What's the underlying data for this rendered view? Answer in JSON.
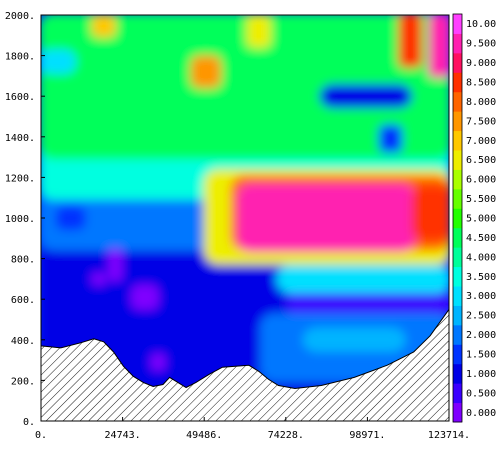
{
  "chart_data": {
    "type": "heatmap",
    "x_ticks": [
      "0.",
      "24743.",
      "49486.",
      "74228.",
      "98971.",
      "123714."
    ],
    "y_ticks": [
      "0.",
      "200.",
      "400.",
      "600.",
      "800.",
      "1000.",
      "1200.",
      "1400.",
      "1600.",
      "1800.",
      "2000."
    ],
    "xlim": [
      0,
      123714
    ],
    "ylim": [
      0,
      2000
    ],
    "colorbar": {
      "levels": [
        0.0,
        0.5,
        1.0,
        1.5,
        2.0,
        2.5,
        3.0,
        3.5,
        4.0,
        4.5,
        5.0,
        5.5,
        6.0,
        6.5,
        7.0,
        7.5,
        8.0,
        8.5,
        9.0,
        9.5,
        10.0
      ],
      "labels": [
        "0.000",
        "0.500",
        "1.000",
        "1.500",
        "2.000",
        "2.500",
        "3.000",
        "3.500",
        "4.000",
        "4.500",
        "5.000",
        "5.500",
        "6.000",
        "6.500",
        "7.000",
        "7.500",
        "8.000",
        "8.500",
        "9.000",
        "9.500",
        "10.00"
      ],
      "colors": [
        "#7f00ff",
        "#3a00ff",
        "#0000e6",
        "#0033ff",
        "#0077ff",
        "#00b4ff",
        "#00e0ff",
        "#00ffe0",
        "#00ff9a",
        "#00ff5a",
        "#22ff00",
        "#66ff00",
        "#aaff00",
        "#eeee00",
        "#ffc800",
        "#ff9600",
        "#ff6400",
        "#ff3000",
        "#ff1060",
        "#ff20b0",
        "#ff40ff"
      ]
    },
    "terrain": [
      [
        0,
        370
      ],
      [
        6000,
        360
      ],
      [
        12000,
        385
      ],
      [
        16000,
        405
      ],
      [
        19000,
        390
      ],
      [
        22000,
        340
      ],
      [
        25000,
        270
      ],
      [
        28000,
        220
      ],
      [
        31000,
        190
      ],
      [
        34000,
        170
      ],
      [
        37000,
        180
      ],
      [
        39000,
        215
      ],
      [
        41000,
        195
      ],
      [
        44000,
        165
      ],
      [
        47000,
        190
      ],
      [
        51000,
        230
      ],
      [
        55000,
        265
      ],
      [
        59000,
        270
      ],
      [
        63000,
        275
      ],
      [
        66000,
        245
      ],
      [
        69000,
        205
      ],
      [
        72000,
        175
      ],
      [
        77000,
        160
      ],
      [
        85000,
        175
      ],
      [
        95000,
        215
      ],
      [
        105000,
        275
      ],
      [
        113000,
        340
      ],
      [
        118000,
        420
      ],
      [
        123714,
        550
      ]
    ],
    "features": [
      {
        "value": 1.0,
        "x": [
          0,
          123714
        ],
        "y": [
          0,
          900
        ]
      },
      {
        "value": 2.0,
        "x": [
          0,
          123714
        ],
        "y": [
          850,
          2000
        ]
      },
      {
        "value": 3.5,
        "x": [
          0,
          123714
        ],
        "y": [
          1100,
          2000
        ]
      },
      {
        "value": 4.5,
        "x": [
          0,
          123714
        ],
        "y": [
          1300,
          2000
        ]
      },
      {
        "value": 0.8,
        "x": [
          75000,
          123714
        ],
        "y": [
          520,
          640
        ]
      },
      {
        "value": 3.0,
        "x": [
          72000,
          123714
        ],
        "y": [
          640,
          760
        ]
      },
      {
        "value": 2.2,
        "x": [
          67000,
          123714
        ],
        "y": [
          200,
          520
        ]
      },
      {
        "value": 2.8,
        "x": [
          80000,
          110000
        ],
        "y": [
          350,
          450
        ]
      },
      {
        "value": 6.5,
        "x": [
          50000,
          123714
        ],
        "y": [
          780,
          1230
        ]
      },
      {
        "value": 8.0,
        "x": [
          58000,
          123714
        ],
        "y": [
          850,
          1200
        ]
      },
      {
        "value": 9.8,
        "x": [
          60000,
          113000
        ],
        "y": [
          840,
          1160
        ]
      },
      {
        "value": 8.5,
        "x": [
          113000,
          123714
        ],
        "y": [
          900,
          1150
        ]
      },
      {
        "value": 0.2,
        "x": [
          28000,
          35000
        ],
        "y": [
          560,
          660
        ]
      },
      {
        "value": 0.1,
        "x": [
          16000,
          19000
        ],
        "y": [
          680,
          720
        ]
      },
      {
        "value": 0.0,
        "x": [
          21000,
          24000
        ],
        "y": [
          700,
          840
        ]
      },
      {
        "value": 0.2,
        "x": [
          34000,
          37000
        ],
        "y": [
          260,
          320
        ]
      },
      {
        "value": 7.5,
        "x": [
          46000,
          54000
        ],
        "y": [
          1650,
          1790
        ]
      },
      {
        "value": 7.0,
        "x": [
          16000,
          22000
        ],
        "y": [
          1900,
          1990
        ]
      },
      {
        "value": 6.5,
        "x": [
          63000,
          69000
        ],
        "y": [
          1850,
          1990
        ]
      },
      {
        "value": 8.5,
        "x": [
          109000,
          115000
        ],
        "y": [
          1750,
          2000
        ]
      },
      {
        "value": 9.5,
        "x": [
          118000,
          123714
        ],
        "y": [
          1700,
          2000
        ]
      },
      {
        "value": 1.2,
        "x": [
          85000,
          112000
        ],
        "y": [
          1550,
          1650
        ]
      },
      {
        "value": 1.5,
        "x": [
          5000,
          13000
        ],
        "y": [
          950,
          1050
        ]
      },
      {
        "value": 1.6,
        "x": [
          103000,
          109000
        ],
        "y": [
          1330,
          1450
        ]
      },
      {
        "value": 3.2,
        "x": [
          0,
          10000
        ],
        "y": [
          1720,
          1820
        ]
      },
      {
        "value": 4.8,
        "x": [
          30000,
          40000
        ],
        "y": [
          1500,
          1620
        ]
      }
    ]
  }
}
